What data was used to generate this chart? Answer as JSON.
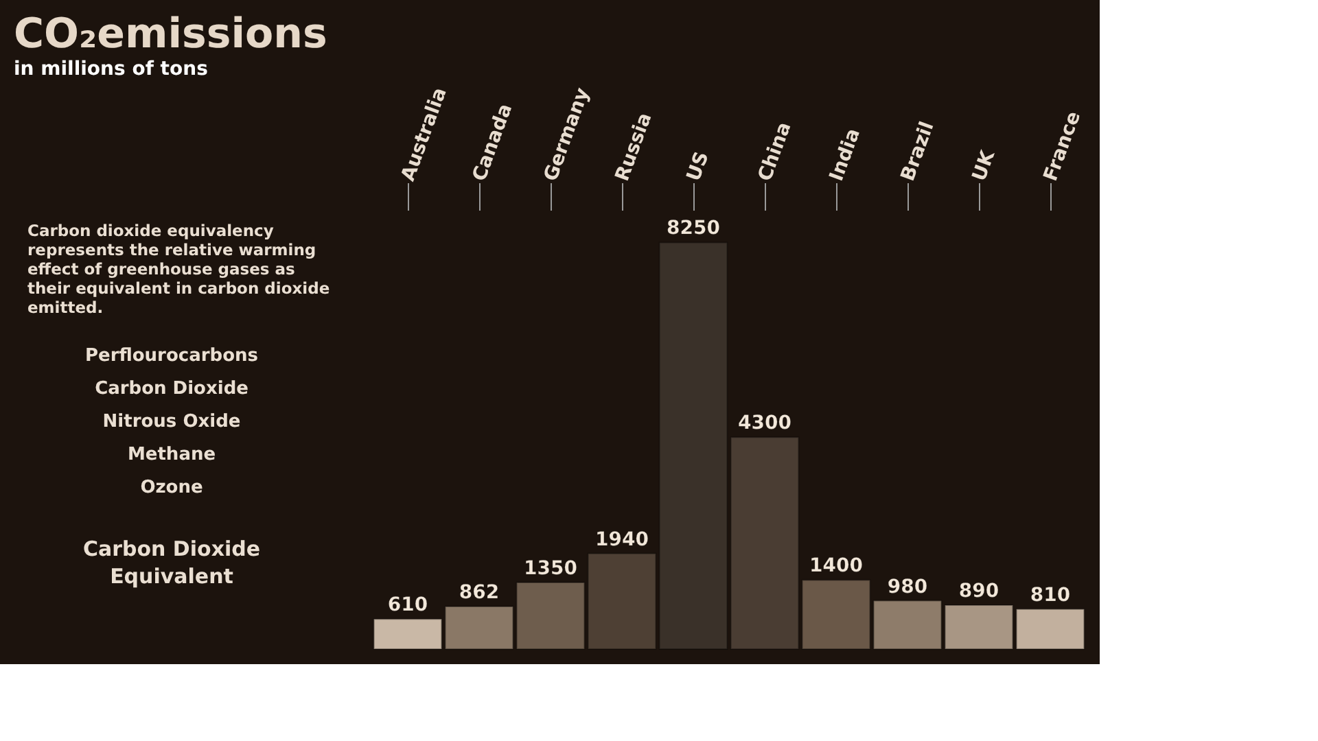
{
  "chart_data": {
    "type": "bar",
    "title": "CO₂emissions",
    "subtitle": "in millions of tons",
    "categories": [
      "Australia",
      "Canada",
      "Germany",
      "Russia",
      "US",
      "China",
      "India",
      "Brazil",
      "UK",
      "France"
    ],
    "values": [
      610,
      862,
      1350,
      1940,
      8250,
      4300,
      1400,
      980,
      890,
      810
    ],
    "colors": [
      "#c9b8a6",
      "#8a7866",
      "#6e5d4d",
      "#4e4034",
      "#3a3129",
      "#4a3d33",
      "#6a5848",
      "#8e7c6a",
      "#a89684",
      "#c2b09e"
    ],
    "data_labels": true,
    "annotations": [
      "Carbon dioxide equivalency represents the relative warming effect of greenhouse gases as their equivalent in carbon dioxide emitted.",
      "Perflourocarbons",
      "Carbon Dioxide",
      "Nitrous Oxide",
      "Methane",
      "Ozone",
      "Carbon Dioxide Equivalent"
    ]
  }
}
